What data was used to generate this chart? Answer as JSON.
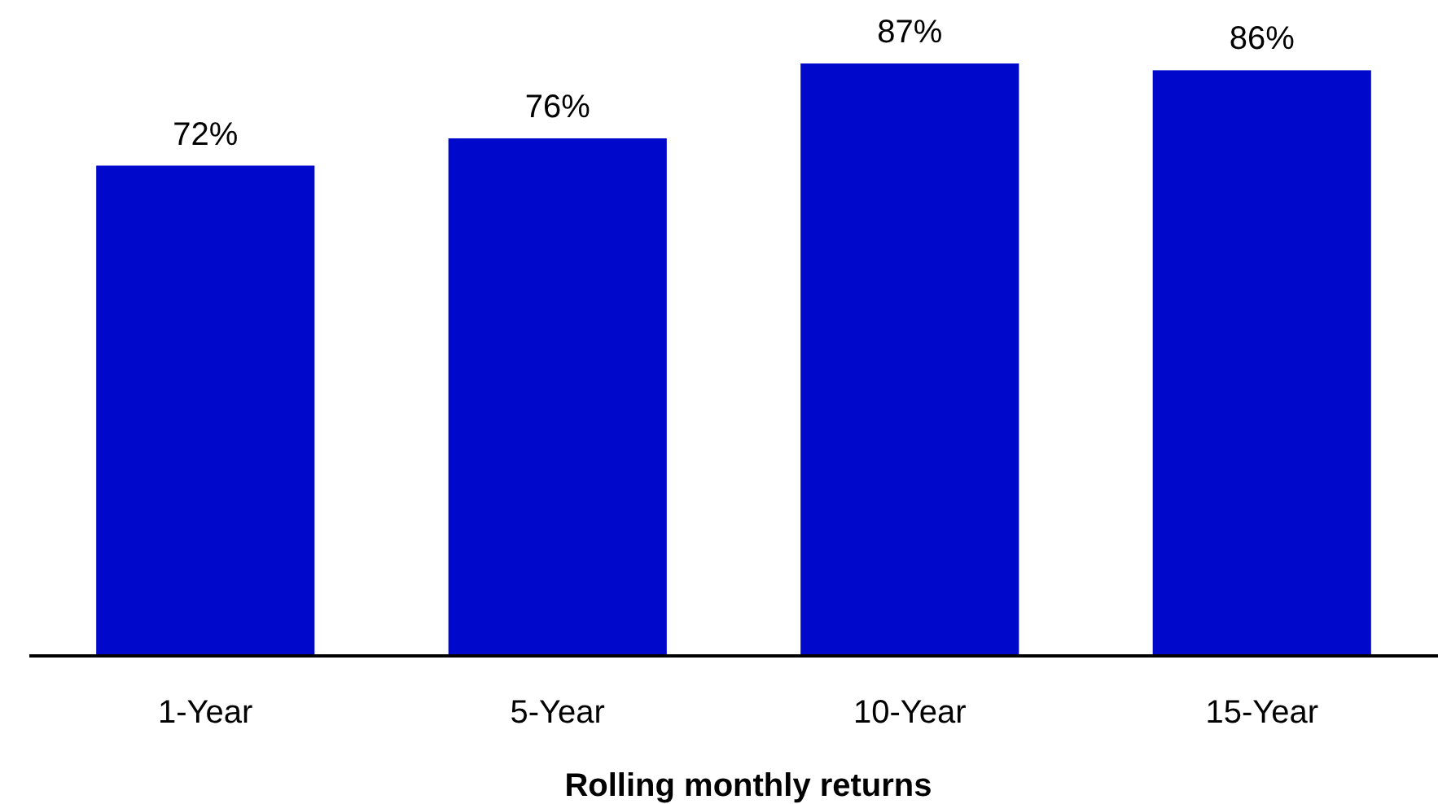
{
  "chart_data": {
    "type": "bar",
    "xlabel": "Rolling monthly returns",
    "categories": [
      "1-Year",
      "5-Year",
      "10-Year",
      "15-Year"
    ],
    "values": [
      72,
      76,
      87,
      86
    ],
    "value_labels": [
      "72%",
      "76%",
      "87%",
      "86%"
    ],
    "color": "#0008cc",
    "grid": false
  }
}
